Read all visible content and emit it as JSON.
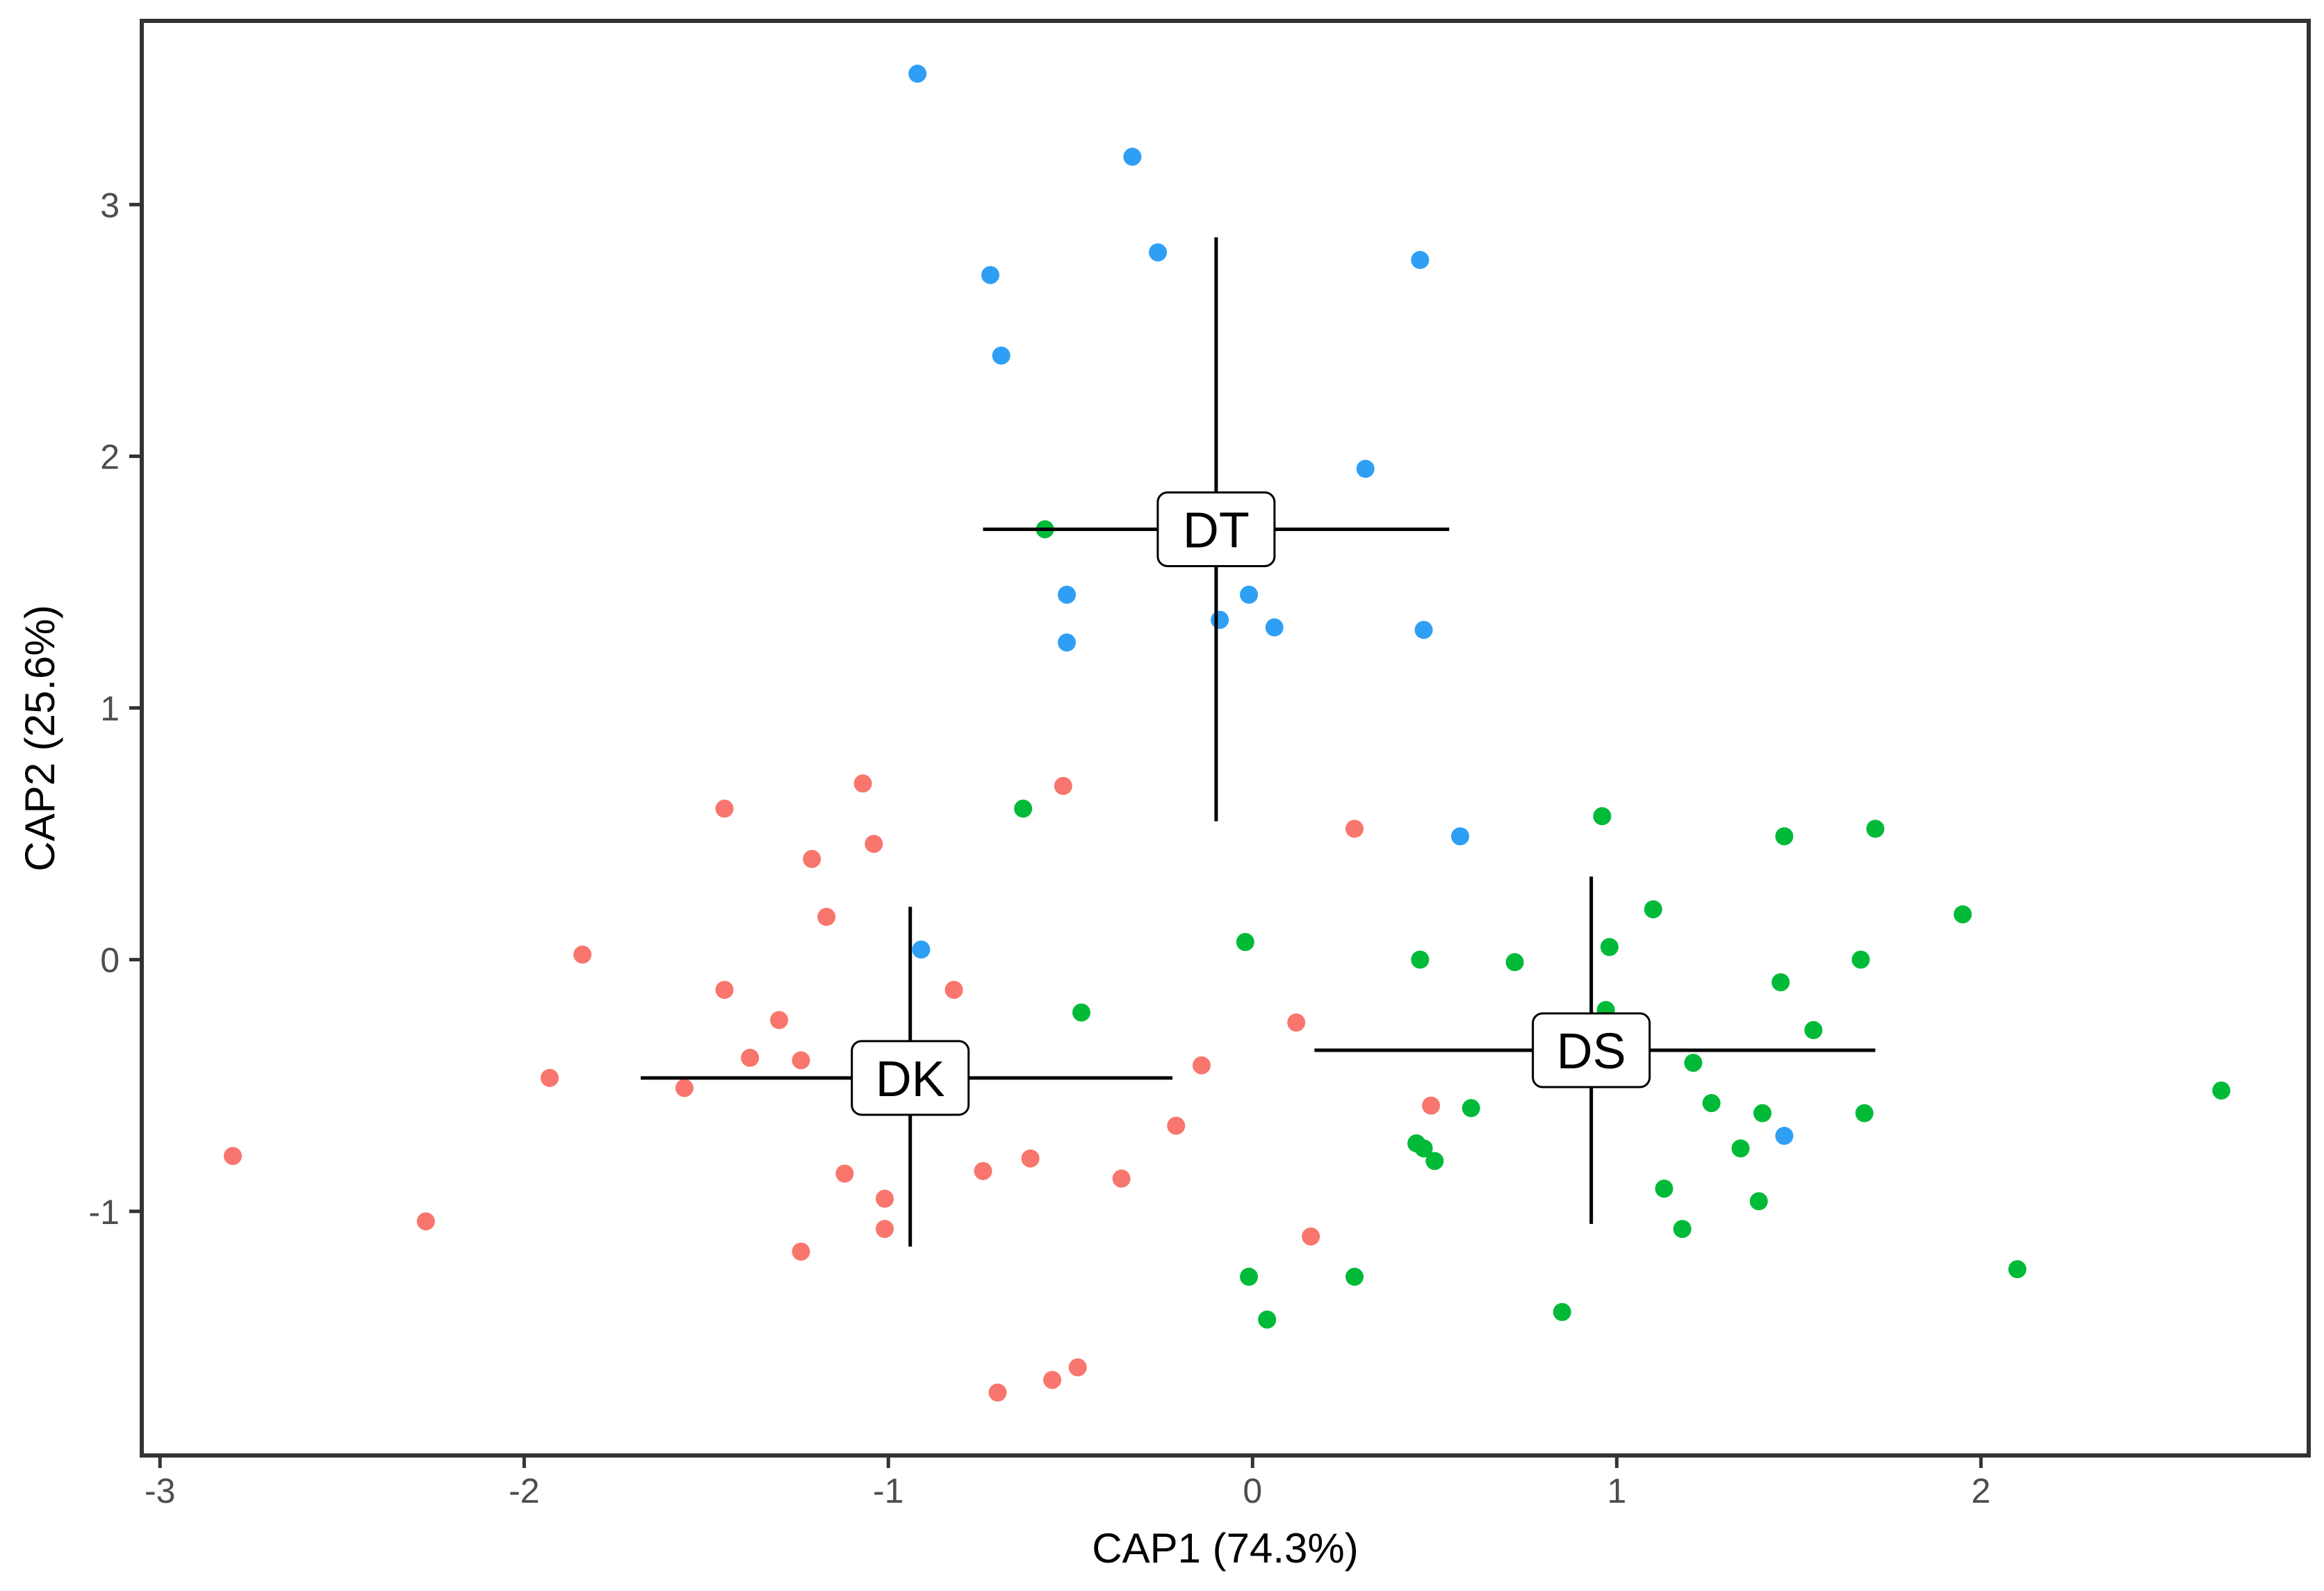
{
  "chart_data": {
    "type": "scatter",
    "title": "",
    "xlabel": "CAP1 (74.3%)",
    "ylabel": "CAP2 (25.6%)",
    "xlim": [
      -3.05,
      2.9
    ],
    "ylim": [
      -1.97,
      3.73
    ],
    "grid": false,
    "legend": "none",
    "x_ticks": [
      -3,
      -2,
      -1,
      0,
      1,
      2
    ],
    "x_tick_labels": [
      "-3",
      "-2",
      "-1",
      "0",
      "1",
      "2"
    ],
    "y_ticks": [
      -1,
      0,
      1,
      2,
      3
    ],
    "y_tick_labels": [
      "-1",
      "0",
      "1",
      "2",
      "3"
    ],
    "series": [
      {
        "name": "DK",
        "color": "#F8766D",
        "points": [
          [
            -2.8,
            -0.78
          ],
          [
            -2.27,
            -1.04
          ],
          [
            -1.93,
            -0.47
          ],
          [
            -1.84,
            0.02
          ],
          [
            -1.56,
            -0.51
          ],
          [
            -1.45,
            0.6
          ],
          [
            -1.45,
            -0.12
          ],
          [
            -1.38,
            -0.39
          ],
          [
            -1.3,
            -0.24
          ],
          [
            -1.24,
            -0.4
          ],
          [
            -1.24,
            -1.16
          ],
          [
            -1.21,
            0.4
          ],
          [
            -1.17,
            0.17
          ],
          [
            -1.12,
            -0.85
          ],
          [
            -1.07,
            0.7
          ],
          [
            -1.04,
            0.46
          ],
          [
            -1.01,
            -0.95
          ],
          [
            -1.01,
            -1.07
          ],
          [
            -0.82,
            -0.12
          ],
          [
            -0.74,
            -0.84
          ],
          [
            -0.7,
            -1.72
          ],
          [
            -0.61,
            -0.79
          ],
          [
            -0.55,
            -1.67
          ],
          [
            -0.52,
            0.69
          ],
          [
            -0.48,
            -1.62
          ],
          [
            -0.36,
            -0.87
          ],
          [
            -0.21,
            -0.66
          ],
          [
            -0.14,
            -0.42
          ],
          [
            0.12,
            -0.25
          ],
          [
            0.16,
            -1.1
          ],
          [
            0.28,
            0.52
          ],
          [
            0.49,
            -0.58
          ]
        ]
      },
      {
        "name": "DS",
        "color": "#00BA38",
        "points": [
          [
            -0.63,
            0.6
          ],
          [
            -0.57,
            1.71
          ],
          [
            -0.47,
            -0.21
          ],
          [
            -0.02,
            0.07
          ],
          [
            -0.01,
            -1.26
          ],
          [
            0.04,
            -1.43
          ],
          [
            0.28,
            -1.26
          ],
          [
            0.45,
            -0.73
          ],
          [
            0.46,
            0.0
          ],
          [
            0.47,
            -0.75
          ],
          [
            0.5,
            -0.8
          ],
          [
            0.6,
            -0.59
          ],
          [
            0.72,
            -0.01
          ],
          [
            0.85,
            -1.4
          ],
          [
            0.96,
            0.57
          ],
          [
            0.97,
            -0.2
          ],
          [
            0.98,
            0.05
          ],
          [
            1.1,
            0.2
          ],
          [
            1.13,
            -0.91
          ],
          [
            1.18,
            -1.07
          ],
          [
            1.21,
            -0.41
          ],
          [
            1.26,
            -0.57
          ],
          [
            1.34,
            -0.75
          ],
          [
            1.39,
            -0.96
          ],
          [
            1.4,
            -0.61
          ],
          [
            1.45,
            -0.09
          ],
          [
            1.46,
            0.49
          ],
          [
            1.54,
            -0.28
          ],
          [
            1.67,
            0.0
          ],
          [
            1.68,
            -0.61
          ],
          [
            1.71,
            0.52
          ],
          [
            1.95,
            0.18
          ],
          [
            2.1,
            -1.23
          ],
          [
            2.66,
            -0.52
          ]
        ]
      },
      {
        "name": "DT",
        "color": "#2E9FF5",
        "points": [
          [
            -0.92,
            3.52
          ],
          [
            -0.33,
            3.19
          ],
          [
            -0.72,
            2.72
          ],
          [
            -0.26,
            2.81
          ],
          [
            0.46,
            2.78
          ],
          [
            -0.69,
            2.4
          ],
          [
            0.31,
            1.95
          ],
          [
            -0.51,
            1.45
          ],
          [
            -0.01,
            1.45
          ],
          [
            -0.51,
            1.26
          ],
          [
            -0.09,
            1.35
          ],
          [
            0.06,
            1.32
          ],
          [
            0.47,
            1.31
          ],
          [
            0.57,
            0.49
          ],
          [
            -0.91,
            0.04
          ],
          [
            1.46,
            -0.7
          ]
        ]
      }
    ],
    "centroids": [
      {
        "name": "DK",
        "label": "DK",
        "x": -0.94,
        "y": -0.47,
        "x_range": [
          -1.68,
          -0.22
        ],
        "y_range": [
          -1.14,
          0.21
        ]
      },
      {
        "name": "DS",
        "label": "DS",
        "x": 0.93,
        "y": -0.36,
        "x_range": [
          0.17,
          1.71
        ],
        "y_range": [
          -1.05,
          0.33
        ]
      },
      {
        "name": "DT",
        "label": "DT",
        "x": -0.1,
        "y": 1.71,
        "x_range": [
          -0.74,
          0.54
        ],
        "y_range": [
          0.55,
          2.87
        ]
      }
    ]
  }
}
